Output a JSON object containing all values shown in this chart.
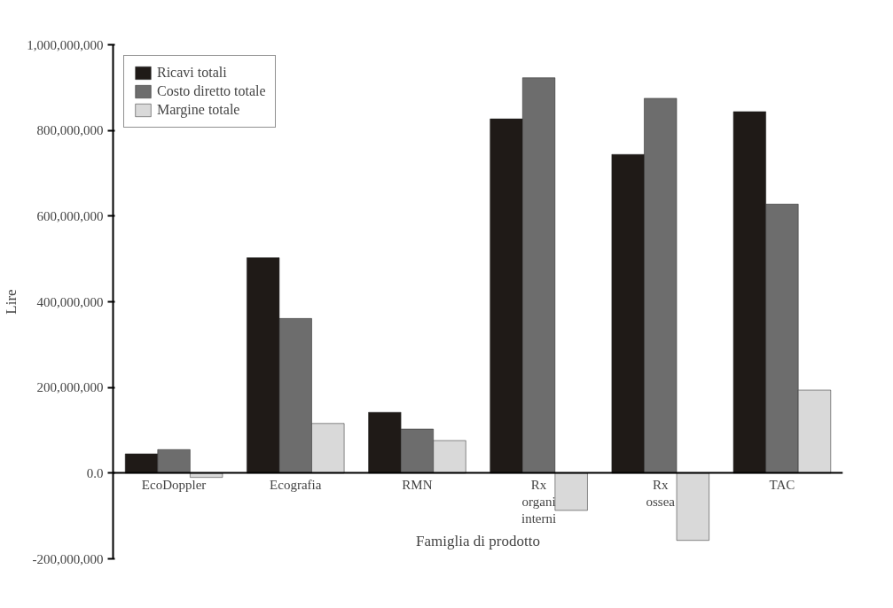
{
  "chart_data": {
    "type": "bar",
    "xlabel": "Famiglia di prodotto",
    "ylabel": "Lire",
    "categories": [
      "EcoDoppler",
      "Ecografia",
      "RMN",
      "Rx organi interni",
      "Rx ossea",
      "TAC"
    ],
    "series": [
      {
        "name": "Ricavi totali",
        "color": "#1f1a17",
        "values": [
          45000000,
          503000000,
          142000000,
          827000000,
          744000000,
          844000000
        ]
      },
      {
        "name": "Costo diretto totale",
        "color": "#6d6d6d",
        "values": [
          55000000,
          361000000,
          103000000,
          923000000,
          875000000,
          628000000
        ]
      },
      {
        "name": "Margine totale",
        "color": "#d9d9d9",
        "values": [
          -10000000,
          116000000,
          76000000,
          -87000000,
          -157000000,
          194000000
        ]
      }
    ],
    "ylim": [
      -200000000,
      1000000000
    ],
    "yticks": [
      {
        "value": -200000000,
        "label": "-200,000,000"
      },
      {
        "value": 0,
        "label": "0.0"
      },
      {
        "value": 200000000,
        "label": "200,000,000"
      },
      {
        "value": 400000000,
        "label": "400,000,000"
      },
      {
        "value": 600000000,
        "label": "600,000,000"
      },
      {
        "value": 800000000,
        "label": "800,000,000"
      },
      {
        "value": 1000000000,
        "label": "1,000,000,000"
      }
    ],
    "legend": "top left",
    "grid": false
  }
}
